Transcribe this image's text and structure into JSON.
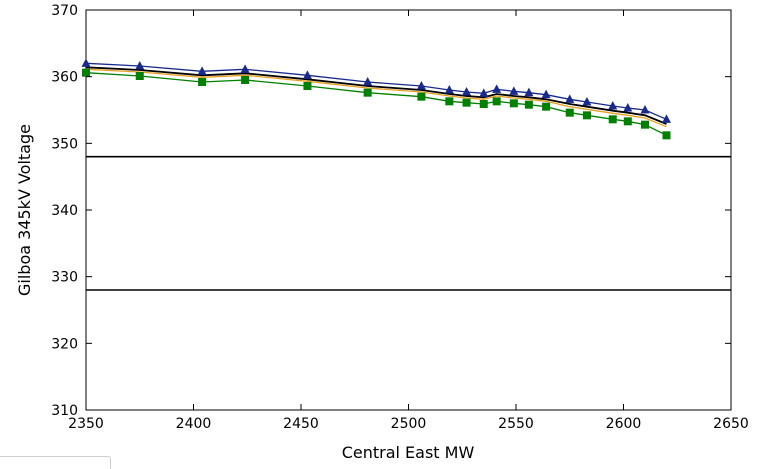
{
  "chart_data": {
    "type": "line",
    "xlabel": "Central East MW",
    "ylabel": "Gilboa 345kV Voltage",
    "xlim": [
      2350,
      2650
    ],
    "ylim": [
      310,
      370
    ],
    "xticks": [
      2350,
      2400,
      2450,
      2500,
      2550,
      2600,
      2650
    ],
    "yticks": [
      310,
      320,
      330,
      340,
      350,
      360,
      370
    ],
    "x": [
      2350,
      2375,
      2404,
      2424,
      2453,
      2481,
      2506,
      2519,
      2527,
      2535,
      2541,
      2549,
      2556,
      2564,
      2575,
      2583,
      2595,
      2602,
      2610,
      2620
    ],
    "series": [
      {
        "color": "#1a2a8c",
        "marker": "triangle",
        "values": [
          362.0,
          361.6,
          360.8,
          361.1,
          360.2,
          359.2,
          358.6,
          358.0,
          357.7,
          357.5,
          358.1,
          357.8,
          357.6,
          357.3,
          356.6,
          356.2,
          355.6,
          355.3,
          355.0,
          353.6
        ]
      },
      {
        "color": "#000000",
        "marker": "none",
        "values": [
          361.4,
          361.0,
          360.2,
          360.5,
          359.6,
          358.6,
          358.0,
          357.4,
          357.1,
          356.9,
          357.4,
          357.1,
          356.9,
          356.6,
          355.9,
          355.5,
          354.9,
          354.6,
          354.2,
          352.9
        ]
      },
      {
        "color": "#e8a020",
        "marker": "none",
        "values": [
          361.1,
          360.7,
          359.9,
          360.2,
          359.3,
          358.3,
          357.7,
          357.1,
          356.8,
          356.6,
          357.1,
          356.8,
          356.6,
          356.3,
          355.5,
          355.1,
          354.5,
          354.2,
          353.8,
          352.5
        ]
      },
      {
        "color": "#008000",
        "marker": "square",
        "values": [
          360.6,
          360.1,
          359.2,
          359.5,
          358.6,
          357.6,
          357.0,
          356.3,
          356.1,
          355.9,
          356.3,
          356.0,
          355.8,
          355.5,
          354.6,
          354.2,
          353.6,
          353.3,
          352.8,
          351.2
        ]
      }
    ],
    "hlines": [
      348,
      328
    ],
    "grid": false,
    "legend": "bottom-left"
  }
}
